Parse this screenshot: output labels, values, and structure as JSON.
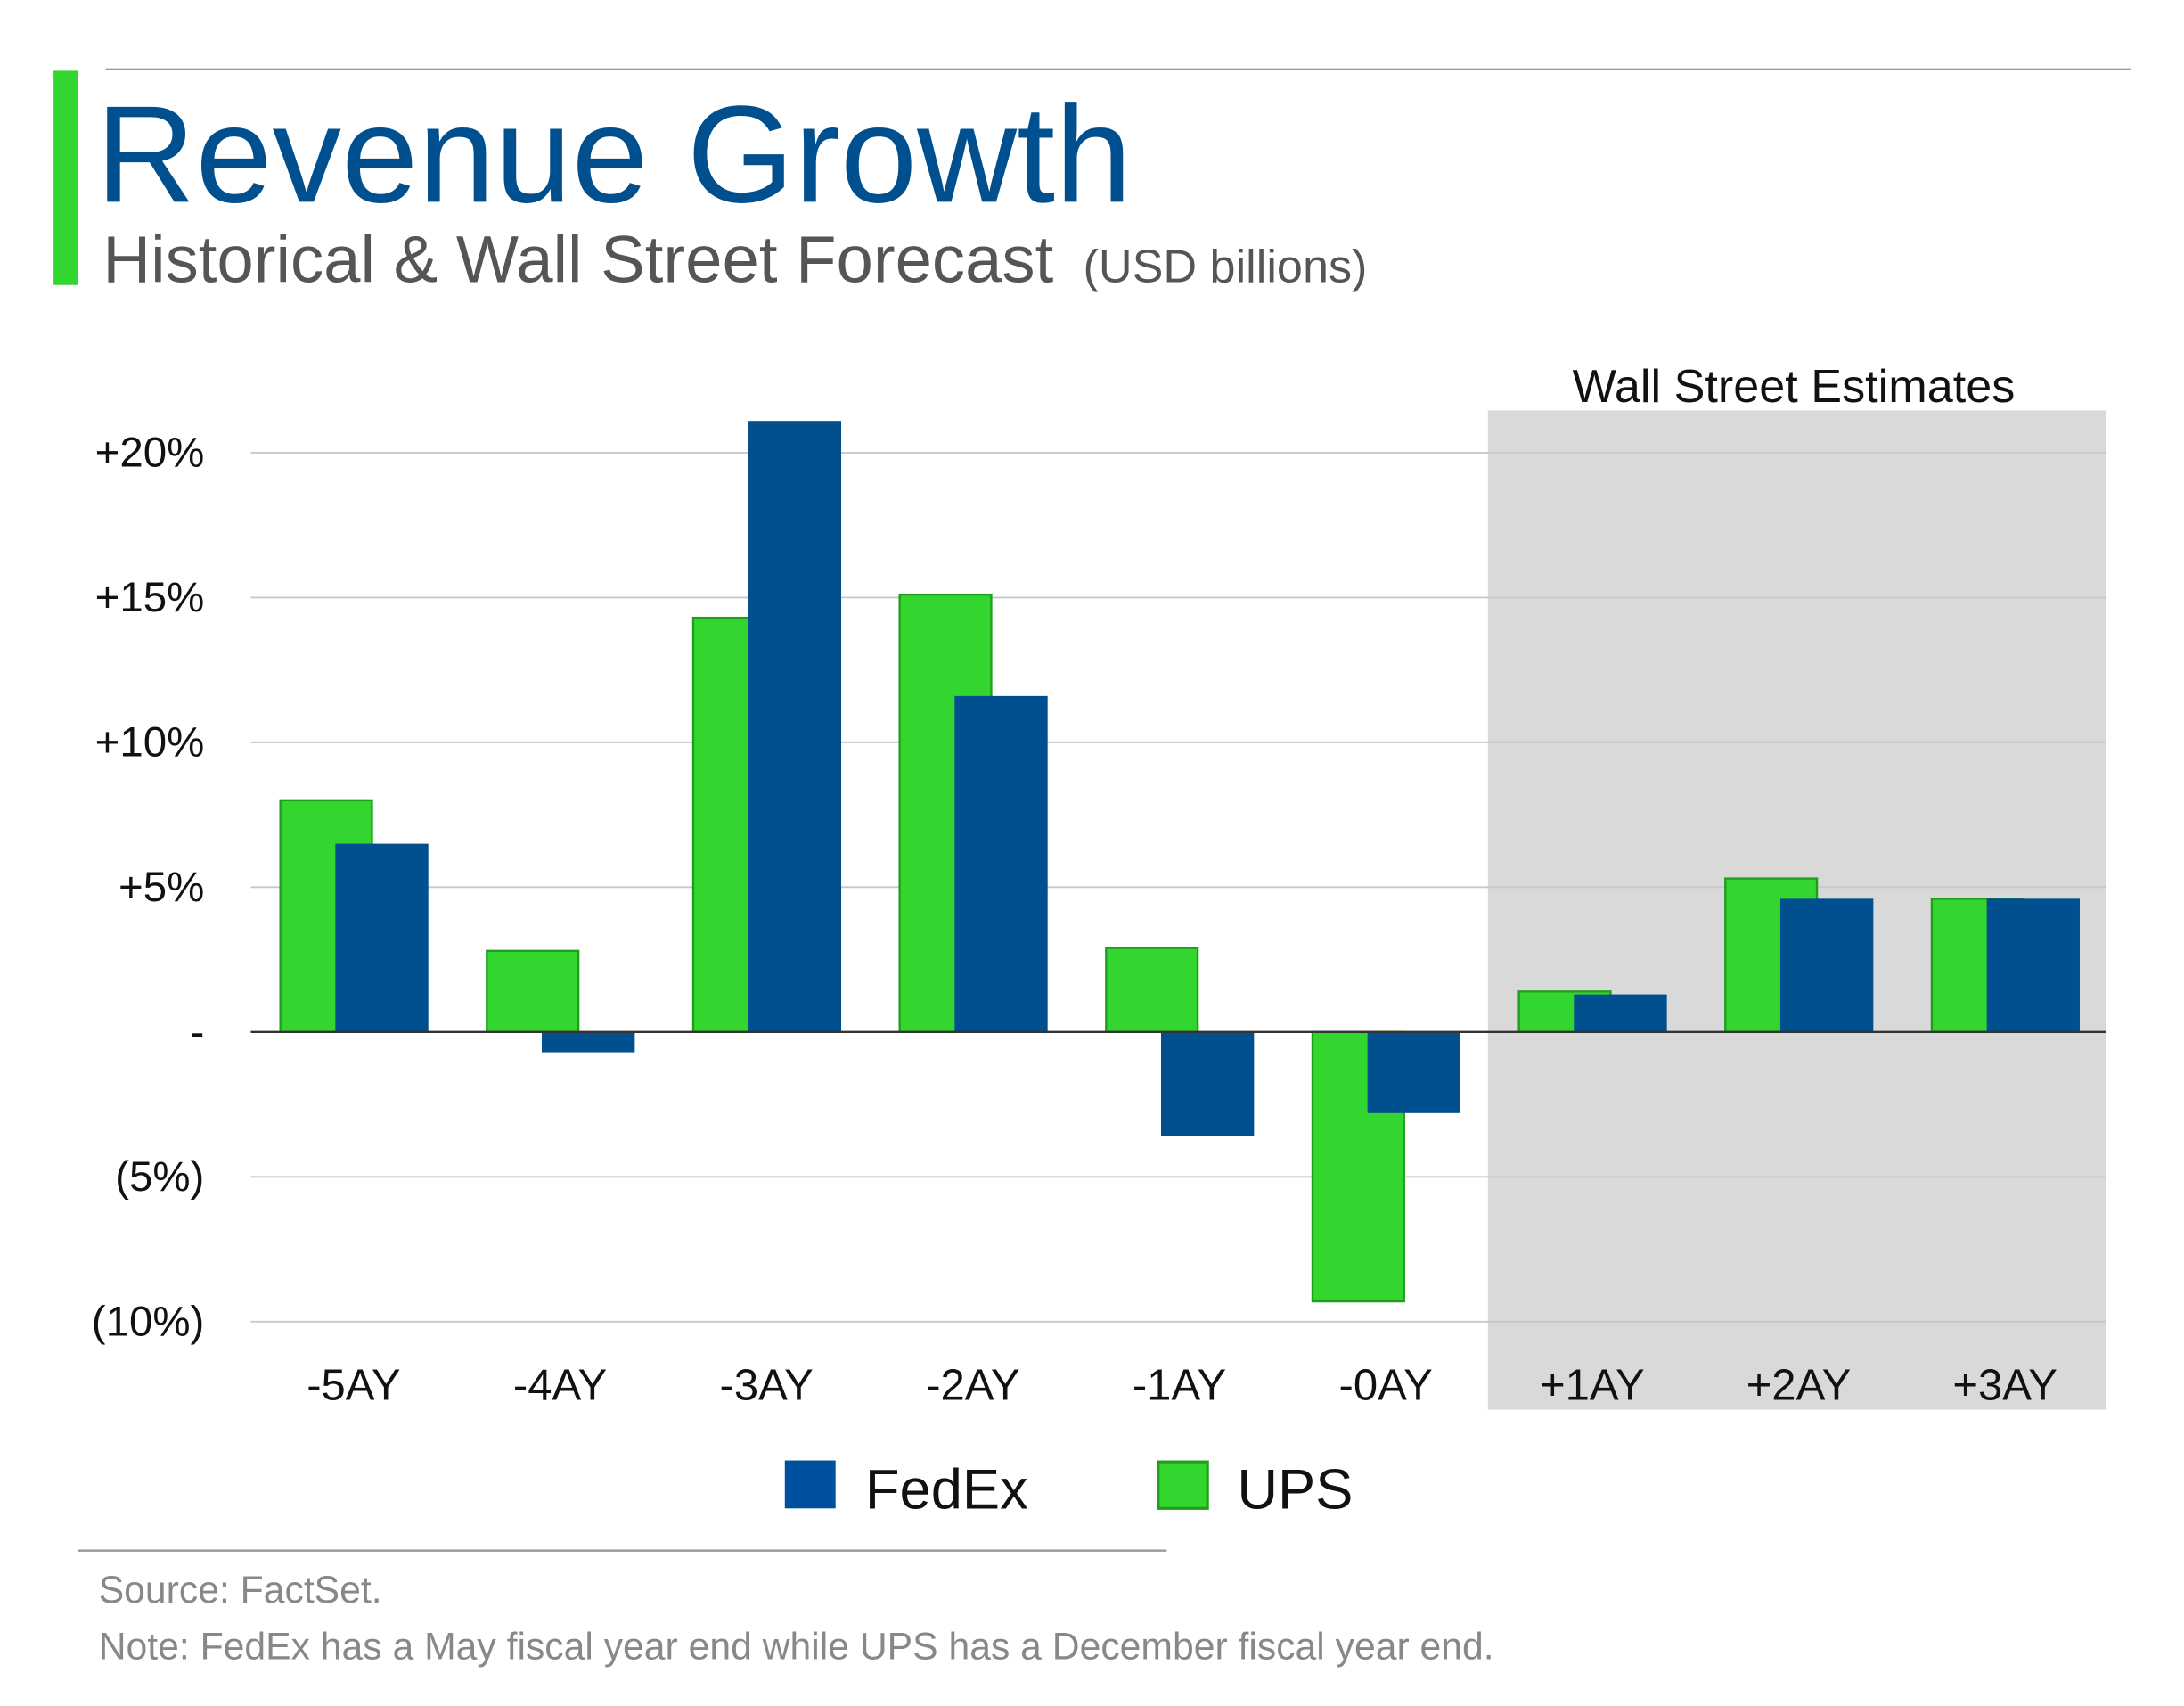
{
  "header": {
    "title": "Revenue Growth",
    "subtitle": "Historical & Wall Street Forecast",
    "subtitle_unit": "(USD billions)"
  },
  "colors": {
    "accent": "#33d62e",
    "title": "#00508f",
    "fedex": "#00508f",
    "ups": "#33d62e",
    "estimate_shade": "#d9d9d9"
  },
  "chart_data": {
    "type": "bar",
    "title": "Revenue Growth",
    "categories": [
      "-5AY",
      "-4AY",
      "-3AY",
      "-2AY",
      "-1AY",
      "-0AY",
      "+1AY",
      "+2AY",
      "+3AY"
    ],
    "series": [
      {
        "name": "UPS",
        "values": [
          8.0,
          2.8,
          14.3,
          15.1,
          2.9,
          -9.3,
          1.4,
          5.3,
          4.6
        ]
      },
      {
        "name": "FedEx",
        "values": [
          6.5,
          -0.7,
          21.1,
          11.6,
          -3.6,
          -2.8,
          1.3,
          4.6,
          4.6
        ]
      }
    ],
    "yticks": [
      20,
      15,
      10,
      5,
      0,
      -5,
      -10
    ],
    "ytick_labels": [
      "+20%",
      "+15%",
      "+10%",
      "+5%",
      "-",
      "(5%)",
      "(10%)"
    ],
    "ylim": [
      -10,
      20
    ],
    "xlabel": "",
    "ylabel": "",
    "annotation": "Wall Street Estimates",
    "estimate_categories": [
      "+1AY",
      "+2AY",
      "+3AY"
    ],
    "legend": [
      "FedEx",
      "UPS"
    ],
    "legend_position": "bottom-center",
    "grid": true
  },
  "footer": {
    "source": "Source: FactSet.",
    "note": "Note: FedEx has a May fiscal year end while UPS has a December fiscal year end."
  }
}
